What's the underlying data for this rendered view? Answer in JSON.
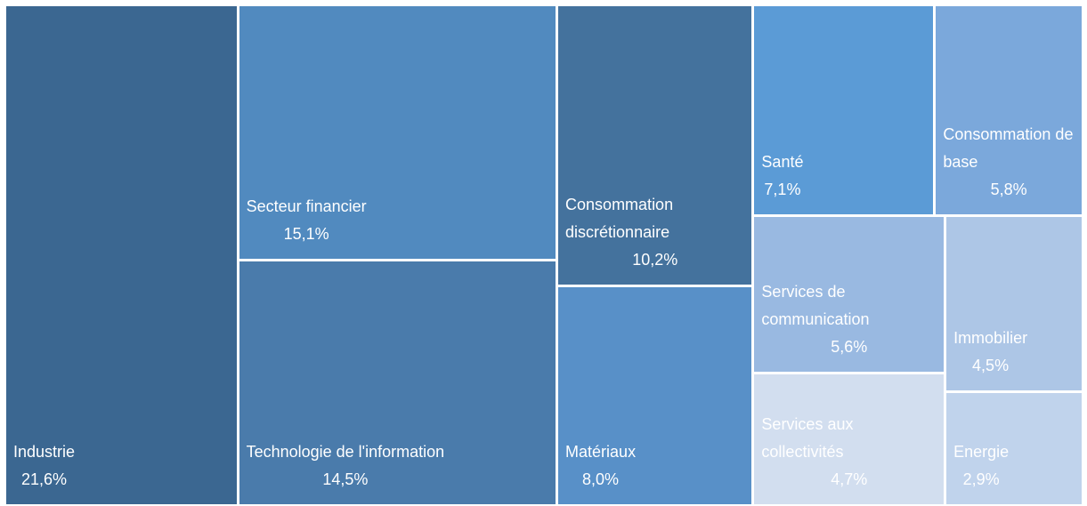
{
  "chart_data": {
    "type": "treemap",
    "categories": [
      "Industrie",
      "Secteur financier",
      "Technologie de l'information",
      "Consommation discrétionnaire",
      "Matériaux",
      "Santé",
      "Consommation de base",
      "Services de communication",
      "Services aux collectivités",
      "Immobilier",
      "Energie"
    ],
    "values": [
      21.6,
      15.1,
      14.5,
      10.2,
      8.0,
      7.1,
      5.8,
      5.6,
      4.7,
      4.5,
      2.9
    ],
    "value_labels": [
      "21,6%",
      "15,1%",
      "14,5%",
      "10,2%",
      "8,0%",
      "7,1%",
      "5,8%",
      "5,6%",
      "4,7%",
      "4,5%",
      "2,9%"
    ],
    "colors": [
      "#3b6791",
      "#518abf",
      "#4a7bab",
      "#44729d",
      "#5890c8",
      "#5b9bd6",
      "#7ba8db",
      "#99b9e1",
      "#d2deef",
      "#adc6e6",
      "#c0d3ec"
    ]
  }
}
